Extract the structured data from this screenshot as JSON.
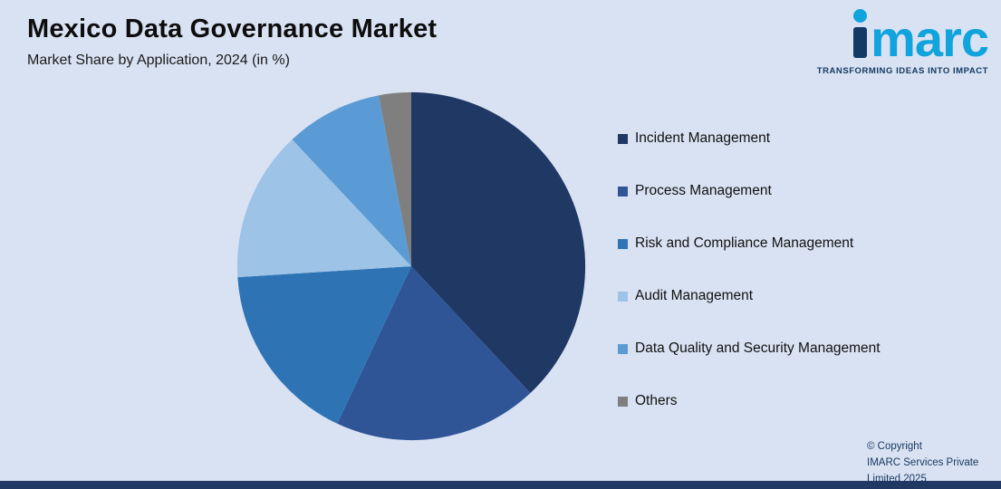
{
  "header": {
    "title": "Mexico Data Governance Market",
    "subtitle": "Market Share by Application, 2024 (in %)"
  },
  "logo": {
    "brand_prefix": "i",
    "brand_rest": "marc",
    "tagline": "TRANSFORMING IDEAS INTO IMPACT",
    "brand_color": "#10a3dc",
    "brand_dark_color": "#123a63"
  },
  "footer": {
    "copyright_line1": "© Copyright",
    "copyright_line2": "IMARC Services Private Limited 2025"
  },
  "chart_data": {
    "type": "pie",
    "title": "Mexico Data Governance Market",
    "subtitle": "Market Share by Application, 2024 (in %)",
    "unit": "%",
    "start_angle_deg": 0,
    "direction": "clockwise",
    "legend_position": "right",
    "data_labels_shown": false,
    "background_color": "#d9e2f3",
    "slices": [
      {
        "label": "Incident Management",
        "value": 38,
        "color": "#1f3864"
      },
      {
        "label": "Process Management",
        "value": 19,
        "color": "#2f5597"
      },
      {
        "label": "Risk and Compliance Management",
        "value": 17,
        "color": "#2e74b5"
      },
      {
        "label": "Audit Management",
        "value": 14,
        "color": "#9dc3e6"
      },
      {
        "label": "Data Quality and Security Management",
        "value": 9,
        "color": "#5b9bd5"
      },
      {
        "label": "Others",
        "value": 3,
        "color": "#7f7f7f"
      }
    ]
  }
}
